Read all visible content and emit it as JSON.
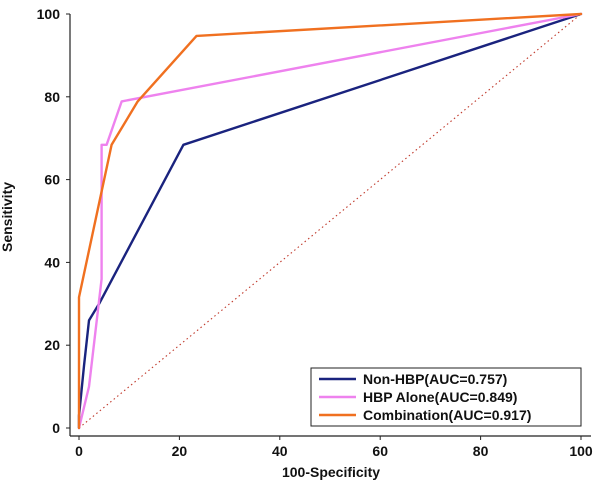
{
  "chart_data": {
    "type": "line",
    "xlabel": "100-Specificity",
    "ylabel": "Sensitivity",
    "xlim": [
      0,
      100
    ],
    "ylim": [
      0,
      100
    ],
    "xticks": [
      0,
      20,
      40,
      60,
      80,
      100
    ],
    "yticks": [
      0,
      20,
      40,
      60,
      80,
      100
    ],
    "tick_labels_x": [
      "0",
      "20",
      "40",
      "60",
      "80",
      "100"
    ],
    "tick_labels_y": [
      "0",
      "20",
      "40",
      "60",
      "80",
      "100"
    ],
    "grid": false,
    "legend_position": "bottom-right",
    "series": [
      {
        "name": "Non-HBP(AUC=0.757)",
        "color": "#1a237e",
        "points": [
          [
            0,
            0
          ],
          [
            0,
            3
          ],
          [
            1,
            15
          ],
          [
            2,
            26
          ],
          [
            4,
            30
          ],
          [
            20.8,
            68.4
          ],
          [
            100,
            100
          ]
        ]
      },
      {
        "name": "HBP Alone(AUC=0.849)",
        "color": "#ee82ee",
        "points": [
          [
            0,
            0
          ],
          [
            2,
            10
          ],
          [
            4.5,
            36
          ],
          [
            4.5,
            68.4
          ],
          [
            5.5,
            68.4
          ],
          [
            8.5,
            78.9
          ],
          [
            100,
            100
          ]
        ]
      },
      {
        "name": "Combination(AUC=0.917)",
        "color": "#f07020",
        "points": [
          [
            0,
            0
          ],
          [
            0,
            31.6
          ],
          [
            6.5,
            68.4
          ],
          [
            11.7,
            78.9
          ],
          [
            23.4,
            94.7
          ],
          [
            100,
            100
          ]
        ]
      }
    ],
    "reference_line": {
      "color": "#c0392b",
      "points": [
        [
          0,
          0
        ],
        [
          100,
          100
        ]
      ]
    }
  }
}
